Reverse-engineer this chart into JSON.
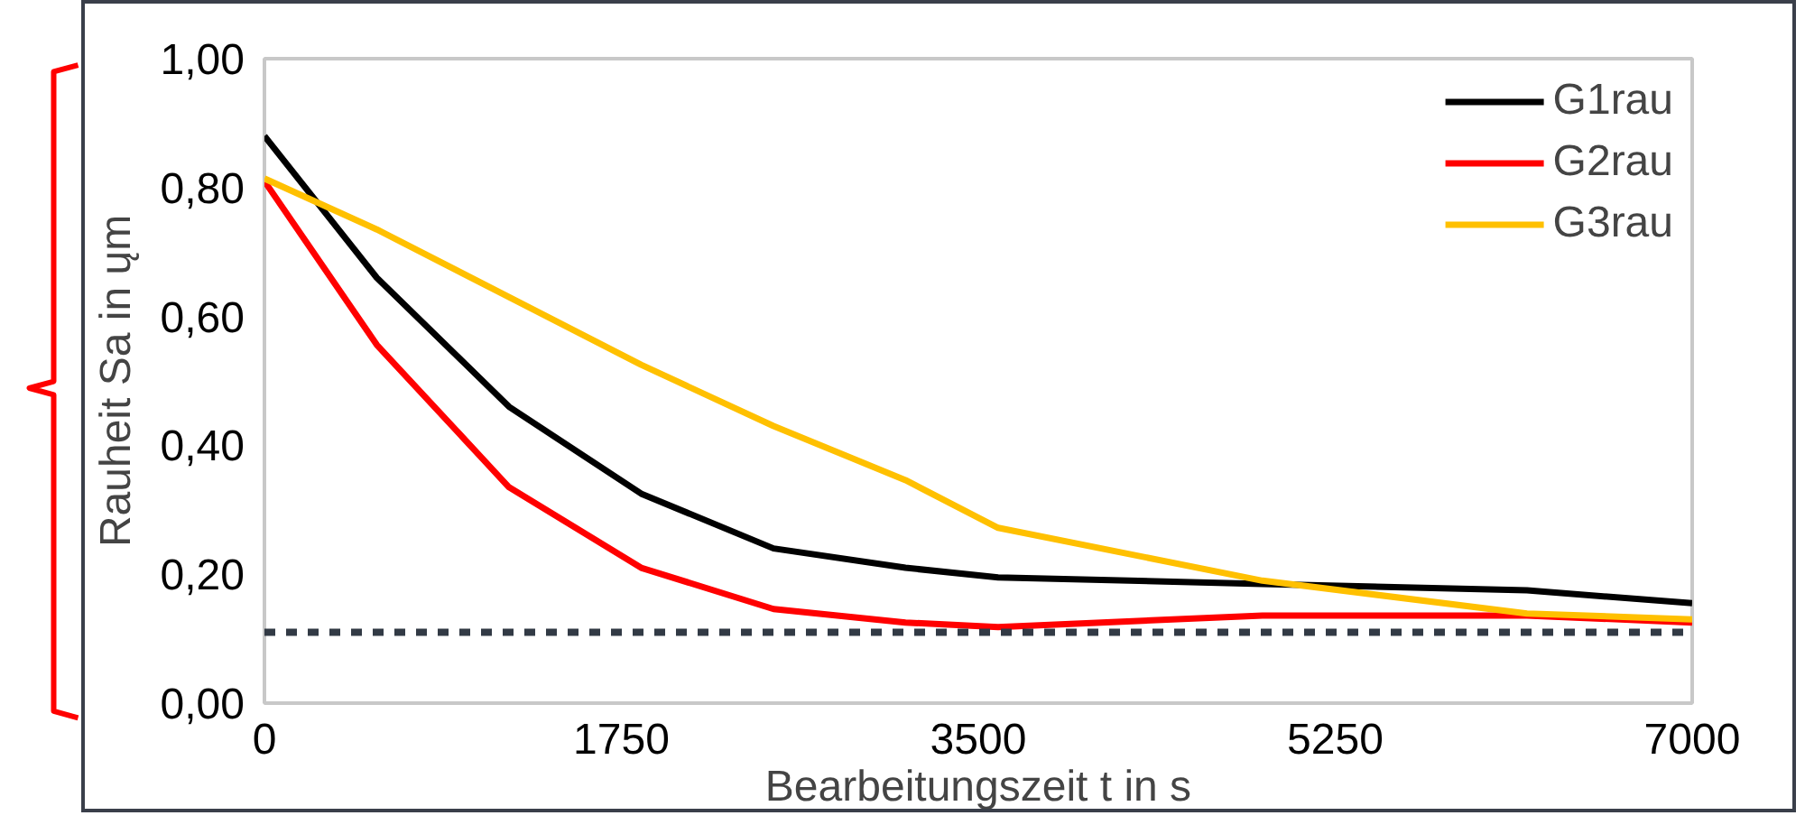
{
  "chart_data": {
    "type": "line",
    "xlabel": "Bearbeitungszeit t in s",
    "ylabel": "Rauheit Sa in ųm",
    "x": [
      0,
      551,
      1199,
      1847,
      2496,
      3143,
      3597,
      4893,
      6190,
      7000
    ],
    "series": [
      {
        "name": "G1rau",
        "color": "#000000",
        "values": [
          0.88,
          0.66,
          0.46,
          0.325,
          0.24,
          0.21,
          0.195,
          0.185,
          0.175,
          0.155
        ]
      },
      {
        "name": "G2rau",
        "color": "#ff0000",
        "values": [
          0.81,
          0.556,
          0.335,
          0.21,
          0.146,
          0.125,
          0.118,
          0.136,
          0.136,
          0.125
        ]
      },
      {
        "name": "G3rau",
        "color": "#ffc000",
        "values": [
          0.814,
          0.735,
          0.63,
          0.525,
          0.43,
          0.346,
          0.272,
          0.19,
          0.139,
          0.13
        ]
      }
    ],
    "xlim": [
      0,
      7000
    ],
    "xticks": [
      0,
      1750,
      3500,
      5250,
      7000
    ],
    "ylim": [
      0,
      1
    ],
    "yticks": [
      {
        "value": 0,
        "label": "0,00"
      },
      {
        "value": 0.2,
        "label": "0,20"
      },
      {
        "value": 0.4,
        "label": "0,40"
      },
      {
        "value": 0.6,
        "label": "0,60"
      },
      {
        "value": 0.8,
        "label": "0,80"
      },
      {
        "value": 1,
        "label": "1,00"
      }
    ],
    "ref_lines": [
      {
        "axis": "y",
        "value": 0.11,
        "color": "#323a45",
        "line_style": "dashed"
      }
    ],
    "legend": "top right",
    "grid": false,
    "line_style": "solid",
    "marker": "none"
  }
}
